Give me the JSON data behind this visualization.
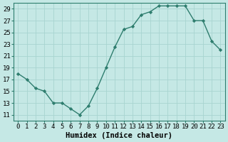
{
  "x": [
    0,
    1,
    2,
    3,
    4,
    5,
    6,
    7,
    8,
    9,
    10,
    11,
    12,
    13,
    14,
    15,
    16,
    17,
    18,
    19,
    20,
    21,
    22,
    23
  ],
  "y": [
    18,
    17,
    15.5,
    15,
    13,
    13,
    12,
    11,
    12.5,
    15.5,
    19,
    22.5,
    25.5,
    26,
    28,
    28.5,
    29.5,
    29.5,
    29.5,
    29.5,
    27,
    27,
    23.5,
    22
  ],
  "line_color": "#2e7d6e",
  "marker": "D",
  "marker_size": 2.2,
  "line_width": 1.0,
  "bg_color": "#c5e8e5",
  "grid_color": "#a8d4d0",
  "xlabel": "Humidex (Indice chaleur)",
  "ylim": [
    10,
    30
  ],
  "yticks": [
    11,
    13,
    15,
    17,
    19,
    21,
    23,
    25,
    27,
    29
  ],
  "xticks": [
    0,
    1,
    2,
    3,
    4,
    5,
    6,
    7,
    8,
    9,
    10,
    11,
    12,
    13,
    14,
    15,
    16,
    17,
    18,
    19,
    20,
    21,
    22,
    23
  ],
  "xlabel_fontsize": 7.5,
  "tick_fontsize": 6.5
}
